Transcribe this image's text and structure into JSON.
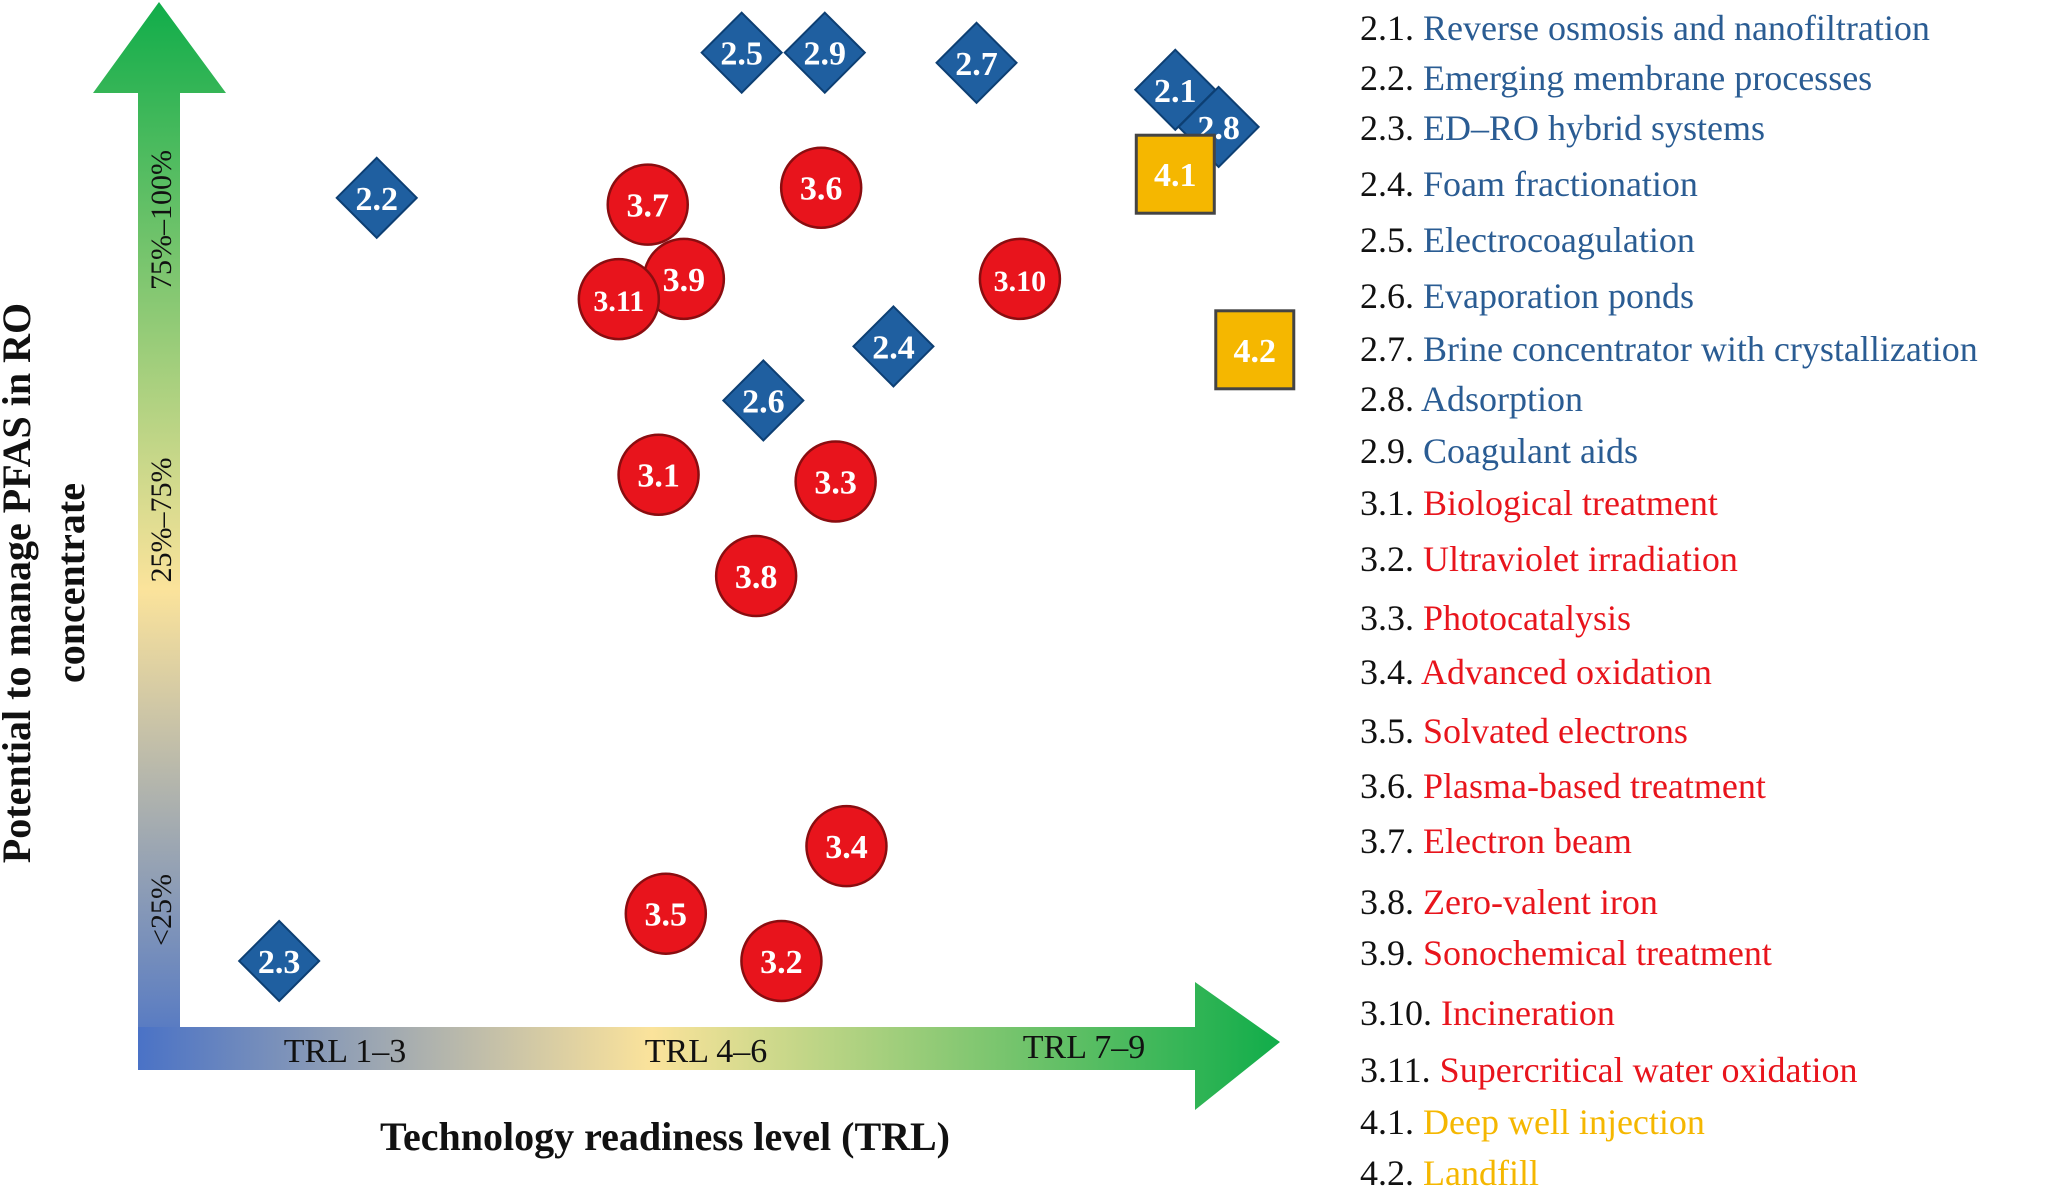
{
  "chart_data": {
    "type": "scatter",
    "xlabel": "Technology readiness level (TRL)",
    "ylabel_line1": "Potential to manage PFAS in RO",
    "ylabel_line2": "concentrate",
    "x_zones": [
      "TRL 1–3",
      "TRL 4–6",
      "TRL 7–9"
    ],
    "y_zones": [
      "<25%",
      "25%–75%",
      "75%–100%"
    ],
    "xlim": [
      0,
      3
    ],
    "ylim": [
      0,
      3
    ],
    "grid": true,
    "legend_position": "right",
    "series": [
      {
        "group": "2",
        "marker": "diamond",
        "color": "#1f5fa0",
        "points": [
          {
            "label": "2.1",
            "x": 2.76,
            "y": 2.74
          },
          {
            "label": "2.2",
            "x": 0.55,
            "y": 2.42
          },
          {
            "label": "2.3",
            "x": 0.28,
            "y": 0.16
          },
          {
            "label": "2.4",
            "x": 1.98,
            "y": 1.98
          },
          {
            "label": "2.5",
            "x": 1.56,
            "y": 2.85
          },
          {
            "label": "2.6",
            "x": 1.62,
            "y": 1.82
          },
          {
            "label": "2.7",
            "x": 2.21,
            "y": 2.82
          },
          {
            "label": "2.8",
            "x": 2.88,
            "y": 2.63
          },
          {
            "label": "2.9",
            "x": 1.79,
            "y": 2.85
          }
        ]
      },
      {
        "group": "3",
        "marker": "circle",
        "color": "#e8141c",
        "points": [
          {
            "label": "3.1",
            "x": 1.33,
            "y": 1.6
          },
          {
            "label": "3.2",
            "x": 1.67,
            "y": 0.16
          },
          {
            "label": "3.3",
            "x": 1.82,
            "y": 1.58
          },
          {
            "label": "3.4",
            "x": 1.85,
            "y": 0.5
          },
          {
            "label": "3.5",
            "x": 1.35,
            "y": 0.3
          },
          {
            "label": "3.6",
            "x": 1.78,
            "y": 2.45
          },
          {
            "label": "3.7",
            "x": 1.3,
            "y": 2.4
          },
          {
            "label": "3.8",
            "x": 1.6,
            "y": 1.3
          },
          {
            "label": "3.9",
            "x": 1.4,
            "y": 2.18
          },
          {
            "label": "3.10",
            "x": 2.33,
            "y": 2.18
          },
          {
            "label": "3.11",
            "x": 1.22,
            "y": 2.12
          }
        ]
      },
      {
        "group": "4",
        "marker": "square",
        "color": "#f5b700",
        "points": [
          {
            "label": "4.1",
            "x": 2.76,
            "y": 2.49
          },
          {
            "label": "4.2",
            "x": 2.98,
            "y": 1.97
          }
        ]
      }
    ]
  },
  "legend": [
    {
      "num": "2.1.",
      "name": "Reverse osmosis and nanofiltration",
      "color": "#2a5c93"
    },
    {
      "num": "2.2.",
      "name": "Emerging membrane processes",
      "color": "#2a5c93"
    },
    {
      "num": "2.3.",
      "name": "ED–RO hybrid systems",
      "color": "#2a5c93"
    },
    {
      "num": "2.4.",
      "name": "Foam fractionation",
      "color": "#2a5c93"
    },
    {
      "num": "2.5.",
      "name": "Electrocoagulation",
      "color": "#2a5c93"
    },
    {
      "num": "2.6.",
      "name": "Evaporation ponds",
      "color": "#2a5c93"
    },
    {
      "num": "2.7.",
      "name": "Brine concentrator with crystallization",
      "color": "#2a5c93"
    },
    {
      "num": "2.8.",
      "name": "Adsorption",
      "color": "#2a5c93"
    },
    {
      "num": "2.9.",
      "name": "Coagulant aids",
      "color": "#2a5c93"
    },
    {
      "num": "3.1.",
      "name": "Biological treatment",
      "color": "#e8141c"
    },
    {
      "num": "3.2.",
      "name": "Ultraviolet irradiation",
      "color": "#e8141c"
    },
    {
      "num": "3.3.",
      "name": "Photocatalysis",
      "color": "#e8141c"
    },
    {
      "num": "3.4.",
      "name": "Advanced oxidation",
      "color": "#e8141c"
    },
    {
      "num": "3.5.",
      "name": "Solvated electrons",
      "color": "#e8141c"
    },
    {
      "num": "3.6.",
      "name": "Plasma-based treatment",
      "color": "#e8141c"
    },
    {
      "num": "3.7.",
      "name": "Electron beam",
      "color": "#e8141c"
    },
    {
      "num": "3.8.",
      "name": "Zero-valent iron",
      "color": "#e8141c"
    },
    {
      "num": "3.9.",
      "name": "Sonochemical treatment",
      "color": "#e8141c"
    },
    {
      "num": "3.10.",
      "name": "Incineration",
      "color": "#e8141c"
    },
    {
      "num": "3.11.",
      "name": "Supercritical water oxidation",
      "color": "#e8141c"
    },
    {
      "num": "4.1.",
      "name": "Deep well injection",
      "color": "#f5b700"
    },
    {
      "num": "4.2.",
      "name": "Landfill",
      "color": "#f5b700"
    }
  ]
}
